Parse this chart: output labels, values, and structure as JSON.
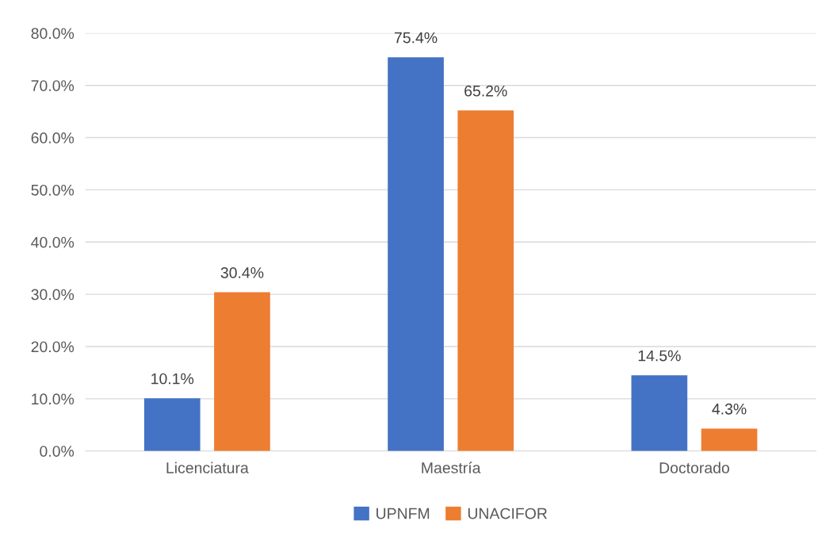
{
  "chart_data": {
    "type": "bar",
    "categories": [
      "Licenciatura",
      "Maestría",
      "Doctorado"
    ],
    "series": [
      {
        "name": "UPNFM",
        "color": "#4472c4",
        "values": [
          10.1,
          75.4,
          14.5
        ],
        "value_labels": [
          "10.1%",
          "75.4%",
          "14.5%"
        ]
      },
      {
        "name": "UNACIFOR",
        "color": "#ed7d31",
        "values": [
          30.4,
          65.2,
          4.3
        ],
        "value_labels": [
          "30.4%",
          "65.2%",
          "4.3%"
        ]
      }
    ],
    "ylim": [
      0,
      80
    ],
    "yticks": [
      {
        "value": 0,
        "label": "0.0%"
      },
      {
        "value": 10,
        "label": "10.0%"
      },
      {
        "value": 20,
        "label": "20.0%"
      },
      {
        "value": 30,
        "label": "30.0%"
      },
      {
        "value": 40,
        "label": "40.0%"
      },
      {
        "value": 50,
        "label": "50.0%"
      },
      {
        "value": 60,
        "label": "60.0%"
      },
      {
        "value": 70,
        "label": "70.0%"
      },
      {
        "value": 80,
        "label": "80.0%"
      }
    ],
    "grid": "y",
    "legend": "bottom"
  }
}
